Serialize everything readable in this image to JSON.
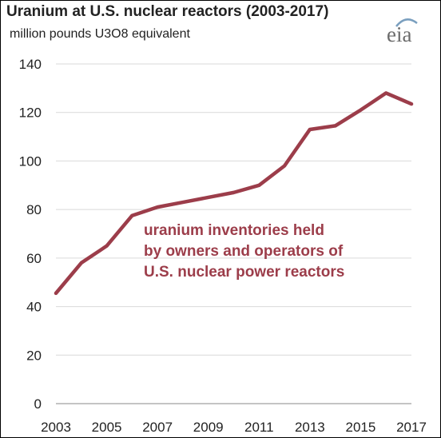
{
  "chart_data": {
    "type": "line",
    "title": "Uranium at U.S. nuclear reactors (2003-2017)",
    "subtitle": "million pounds U3O8 equivalent",
    "logo": "eia",
    "xlabel": "",
    "ylabel": "",
    "x": [
      2003,
      2004,
      2005,
      2006,
      2007,
      2008,
      2009,
      2010,
      2011,
      2012,
      2013,
      2014,
      2015,
      2016,
      2017
    ],
    "series": [
      {
        "values": [
          45.5,
          58,
          65,
          77.5,
          81,
          83,
          85,
          87,
          90,
          98,
          113,
          114.5,
          121,
          128,
          123.5
        ]
      }
    ],
    "xlim": [
      2003,
      2017
    ],
    "ylim": [
      0,
      140
    ],
    "xticks": [
      "2003",
      "2005",
      "2007",
      "2009",
      "2011",
      "2013",
      "2015",
      "2017"
    ],
    "yticks": [
      "0",
      "20",
      "40",
      "60",
      "80",
      "100",
      "120",
      "140"
    ],
    "annotation": [
      "uranium inventories held",
      "by owners and operators of",
      "U.S. nuclear power reactors"
    ],
    "grid": "horizontal",
    "line_color": "#9c3d4a",
    "grid_color": "#d9d9d9",
    "legend": "none"
  }
}
